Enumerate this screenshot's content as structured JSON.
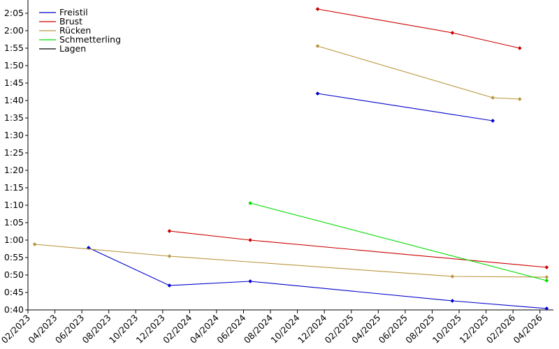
{
  "chart_data": {
    "type": "line",
    "xlim": [
      "2023-02",
      "2026-05"
    ],
    "ylim": [
      40,
      128.8
    ],
    "xticks": [
      {
        "value": "2023-02",
        "label": "02/2023"
      },
      {
        "value": "2023-04",
        "label": "04/2023"
      },
      {
        "value": "2023-06",
        "label": "06/2023"
      },
      {
        "value": "2023-08",
        "label": "08/2023"
      },
      {
        "value": "2023-10",
        "label": "10/2023"
      },
      {
        "value": "2023-12",
        "label": "12/2023"
      },
      {
        "value": "2024-02",
        "label": "02/2024"
      },
      {
        "value": "2024-04",
        "label": "04/2024"
      },
      {
        "value": "2024-06",
        "label": "06/2024"
      },
      {
        "value": "2024-08",
        "label": "08/2024"
      },
      {
        "value": "2024-10",
        "label": "10/2024"
      },
      {
        "value": "2024-12",
        "label": "12/2024"
      },
      {
        "value": "2025-02",
        "label": "02/2025"
      },
      {
        "value": "2025-04",
        "label": "04/2025"
      },
      {
        "value": "2025-06",
        "label": "06/2025"
      },
      {
        "value": "2025-08",
        "label": "08/2025"
      },
      {
        "value": "2025-10",
        "label": "10/2025"
      },
      {
        "value": "2025-12",
        "label": "12/2025"
      },
      {
        "value": "2026-02",
        "label": "02/2026"
      },
      {
        "value": "2026-04",
        "label": "04/2026"
      }
    ],
    "yticks": [
      {
        "value": 40,
        "label": "0:40"
      },
      {
        "value": 45,
        "label": "0:45"
      },
      {
        "value": 50,
        "label": "0:50"
      },
      {
        "value": 55,
        "label": "0:55"
      },
      {
        "value": 60,
        "label": "1:00"
      },
      {
        "value": 65,
        "label": "1:05"
      },
      {
        "value": 70,
        "label": "1:10"
      },
      {
        "value": 75,
        "label": "1:15"
      },
      {
        "value": 80,
        "label": "1:20"
      },
      {
        "value": 85,
        "label": "1:25"
      },
      {
        "value": 90,
        "label": "1:30"
      },
      {
        "value": 95,
        "label": "1:35"
      },
      {
        "value": 100,
        "label": "1:40"
      },
      {
        "value": 105,
        "label": "1:45"
      },
      {
        "value": 110,
        "label": "1:50"
      },
      {
        "value": 115,
        "label": "1:55"
      },
      {
        "value": 120,
        "label": "2:00"
      },
      {
        "value": 125,
        "label": "2:05"
      }
    ],
    "series": [
      {
        "name": "Freistil",
        "color": "#0000cc",
        "lines": [
          {
            "x": [
              "2023-06",
              "2023-12",
              "2024-06",
              "2025-09",
              "2026-04"
            ],
            "values": [
              57.8,
              47,
              48.2,
              42.6,
              40.4
            ]
          },
          {
            "x": [
              "2024-11",
              "2025-12"
            ],
            "values": [
              102,
              94.2
            ]
          }
        ]
      },
      {
        "name": "Brust",
        "color": "#cc0000",
        "lines": [
          {
            "x": [
              "2024-11",
              "2025-09",
              "2026-02"
            ],
            "values": [
              126.2,
              119.4,
              115
            ]
          },
          {
            "x": [
              "2023-12",
              "2024-06",
              "2026-04"
            ],
            "values": [
              62.6,
              60,
              52.2
            ]
          }
        ]
      },
      {
        "name": "Rücken",
        "color": "#b8963c",
        "lines": [
          {
            "x": [
              "2024-11",
              "2025-12",
              "2026-02"
            ],
            "values": [
              115.6,
              100.8,
              100.4
            ]
          },
          {
            "x": [
              "2023-02",
              "2023-12",
              "2025-09",
              "2026-04"
            ],
            "values": [
              58.8,
              55.4,
              49.6,
              49.4
            ]
          }
        ]
      },
      {
        "name": "Schmetterling",
        "color": "#00dd00",
        "lines": [
          {
            "x": [
              "2024-06",
              "2026-04"
            ],
            "values": [
              70.6,
              48.4
            ]
          }
        ]
      },
      {
        "name": "Lagen",
        "color": "#000000",
        "lines": []
      }
    ]
  }
}
